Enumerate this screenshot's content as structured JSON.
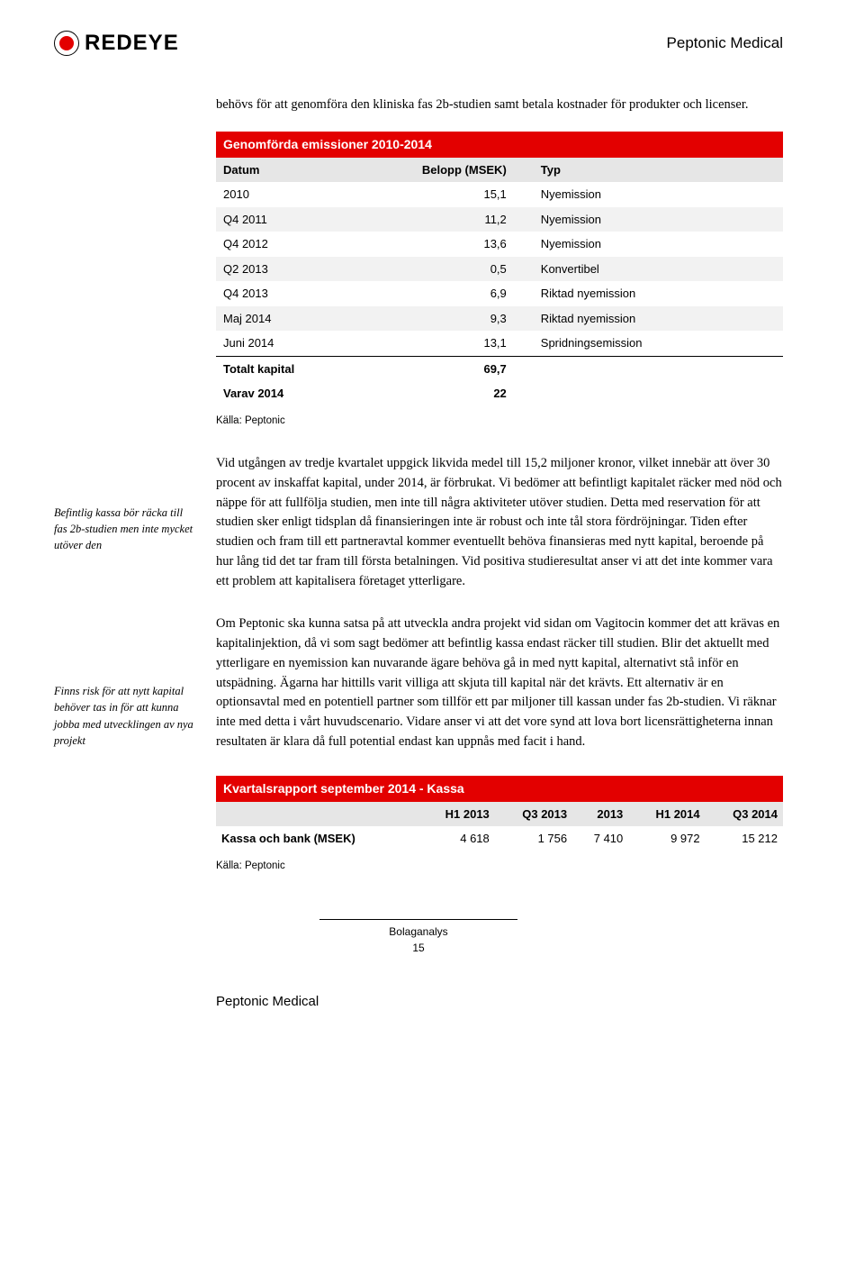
{
  "header": {
    "logo_text": "REDEYE",
    "company_name": "Peptonic Medical"
  },
  "intro": "behövs för att genomföra den kliniska fas 2b-studien samt betala kostnader för produkter och licenser.",
  "table1": {
    "title": "Genomförda emissioner 2010-2014",
    "col_labels": {
      "datum": "Datum",
      "belopp": "Belopp (MSEK)",
      "typ": "Typ"
    },
    "rows": [
      {
        "datum": "2010",
        "belopp": "15,1",
        "typ": "Nyemission"
      },
      {
        "datum": "Q4 2011",
        "belopp": "11,2",
        "typ": "Nyemission"
      },
      {
        "datum": "Q4 2012",
        "belopp": "13,6",
        "typ": "Nyemission"
      },
      {
        "datum": "Q2 2013",
        "belopp": "0,5",
        "typ": "Konvertibel"
      },
      {
        "datum": "Q4 2013",
        "belopp": "6,9",
        "typ": "Riktad nyemission"
      },
      {
        "datum": "Maj 2014",
        "belopp": "9,3",
        "typ": "Riktad nyemission"
      },
      {
        "datum": "Juni 2014",
        "belopp": "13,1",
        "typ": "Spridningsemission"
      }
    ],
    "total_label": "Totalt kapital",
    "total_value": "69,7",
    "varav_label": "Varav 2014",
    "varav_value": "22",
    "source": "Källa: Peptonic"
  },
  "block1": {
    "sidebar": "Befintlig kassa bör räcka till fas 2b-studien men inte mycket utöver den",
    "body": "Vid utgången av tredje kvartalet uppgick likvida medel till 15,2 miljoner kronor, vilket innebär att över 30 procent av inskaffat kapital, under 2014, är förbrukat. Vi bedömer att befintligt kapitalet räcker med nöd och näppe för att fullfölja studien, men inte till några aktiviteter utöver studien. Detta med reservation för att studien sker enligt tidsplan då finansieringen inte är robust och inte tål stora fördröjningar. Tiden efter studien och fram till ett partneravtal kommer eventuellt behöva finansieras med nytt kapital, beroende på hur lång tid det tar fram till första betalningen. Vid positiva studieresultat anser vi att det inte kommer vara ett problem att kapitalisera företaget ytterligare."
  },
  "block2": {
    "sidebar": "Finns risk för att nytt kapital behöver tas in för att kunna jobba med utvecklingen av nya projekt",
    "body": "Om Peptonic ska kunna satsa på att utveckla andra projekt vid sidan om Vagitocin kommer det att krävas en kapitalinjektion, då vi som sagt bedömer att befintlig kassa endast räcker till studien. Blir det aktuellt med ytterligare en nyemission kan nuvarande ägare behöva gå in med nytt kapital, alternativt stå inför en utspädning. Ägarna har hittills varit villiga att skjuta till kapital när det krävts. Ett alternativ är en optionsavtal med en potentiell partner som tillför ett par miljoner till kassan under fas 2b-studien. Vi räknar inte med detta i vårt huvudscenario. Vidare anser vi att det vore synd att lova bort licensrättigheterna innan resultaten är klara då full potential endast kan uppnås med facit i hand."
  },
  "table2": {
    "title": "Kvartalsrapport september 2014 - Kassa",
    "columns": [
      "",
      "H1 2013",
      "Q3 2013",
      "2013",
      "H1 2014",
      "Q3 2014"
    ],
    "row_label": "Kassa och bank (MSEK)",
    "row_values": [
      "4 618",
      "1 756",
      "7 410",
      "9 972",
      "15 212"
    ],
    "source": "Källa: Peptonic"
  },
  "footer": {
    "line1": "Bolaganalys",
    "line2": "15",
    "company": "Peptonic Medical"
  },
  "colors": {
    "brand_red": "#e30000",
    "header_grey": "#e6e6e6",
    "alt_row": "#f2f2f2"
  }
}
